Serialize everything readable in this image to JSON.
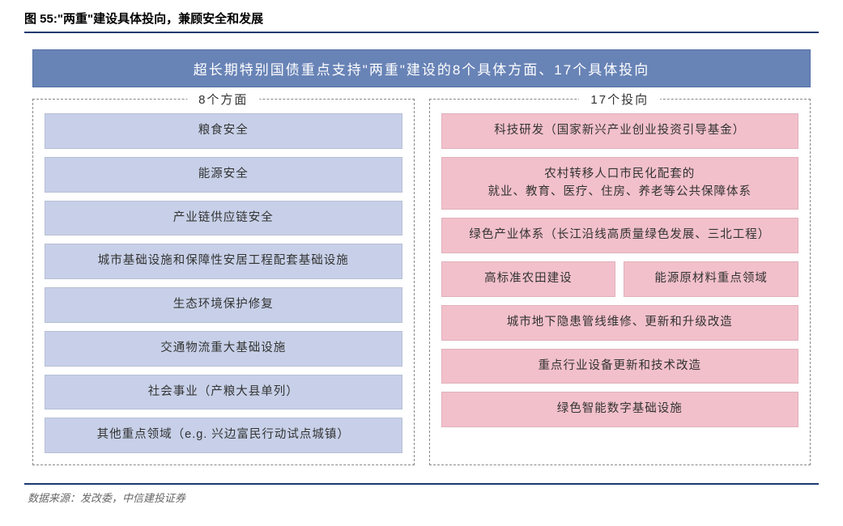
{
  "figure_label": "图 55:\"两重\"建设具体投向，兼顾安全和发展",
  "banner": "超长期特别国债重点支持\"两重\"建设的8个具体方面、17个具体投向",
  "left": {
    "title": "8个方面",
    "color": "#c7d0e8",
    "items": [
      "粮食安全",
      "能源安全",
      "产业链供应链安全",
      "城市基础设施和保障性安居工程配套基础设施",
      "生态环境保护修复",
      "交通物流重大基础设施",
      "社会事业（产粮大县单列）",
      "其他重点领域（e.g. 兴边富民行动试点城镇）"
    ]
  },
  "right": {
    "title": "17个投向",
    "color": "#f2c0cb",
    "item1": "科技研发（国家新兴产业创业投资引导基金）",
    "item2_line1": "农村转移人口市民化配套的",
    "item2_line2": "就业、教育、医疗、住房、养老等公共保障体系",
    "item3": "绿色产业体系（长江沿线高质量绿色发展、三北工程）",
    "item4a": "高标准农田建设",
    "item4b": "能源原材料重点领域",
    "item5": "城市地下隐患管线维修、更新和升级改造",
    "item6": "重点行业设备更新和技术改造",
    "item7": "绿色智能数字基础设施"
  },
  "source": "数据来源：发改委，中信建投证券",
  "colors": {
    "banner_bg": "#6883b6",
    "rule": "#1a3a6e",
    "dash": "#888888"
  }
}
